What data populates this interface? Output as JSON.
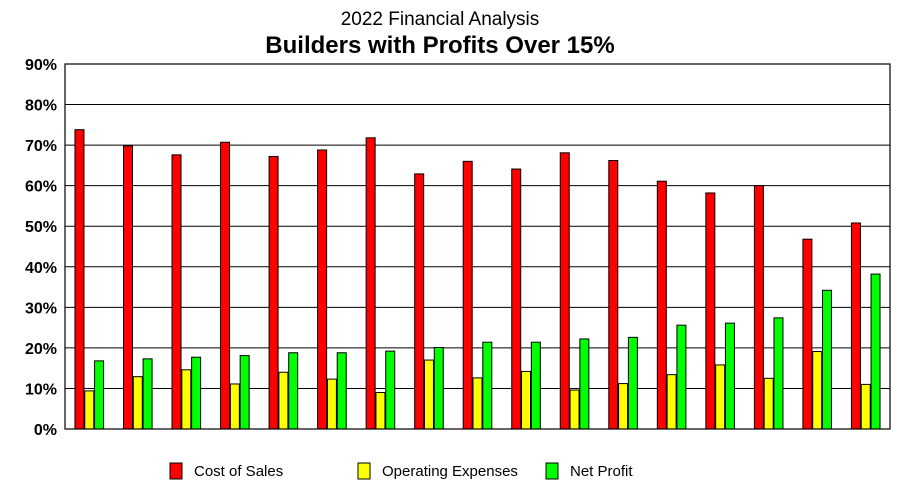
{
  "chart_data": {
    "type": "bar",
    "subtitle": "2022 Financial Analysis",
    "title": "Builders with Profits Over 15%",
    "xlabel": "",
    "ylabel": "",
    "ylim": [
      0,
      90
    ],
    "y_ticks": [
      "0%",
      "10%",
      "20%",
      "30%",
      "40%",
      "50%",
      "60%",
      "70%",
      "80%",
      "90%"
    ],
    "grid": "horizontal",
    "legend_position": "bottom",
    "categories": [
      "",
      "",
      "",
      "",
      "",
      "",
      "",
      "",
      "",
      "",
      "",
      "",
      "",
      "",
      "",
      "",
      ""
    ],
    "series": [
      {
        "name": "Cost of Sales",
        "color": "#ff0000",
        "values": [
          73.8,
          69.8,
          67.6,
          70.7,
          67.2,
          68.8,
          71.8,
          62.9,
          66.0,
          64.1,
          68.1,
          66.2,
          61.1,
          58.2,
          60.0,
          46.8,
          50.8
        ]
      },
      {
        "name": "Operating Expenses",
        "color": "#ffff00",
        "values": [
          9.4,
          12.9,
          14.6,
          11.1,
          14.0,
          12.3,
          9.0,
          17.0,
          12.6,
          14.2,
          9.6,
          11.2,
          13.4,
          15.8,
          12.5,
          19.1,
          11.0
        ]
      },
      {
        "name": "Net Profit",
        "color": "#00ff00",
        "values": [
          16.8,
          17.3,
          17.7,
          18.1,
          18.8,
          18.8,
          19.2,
          20.1,
          21.4,
          21.4,
          22.2,
          22.6,
          25.6,
          26.1,
          27.4,
          34.2,
          38.2
        ]
      }
    ]
  }
}
